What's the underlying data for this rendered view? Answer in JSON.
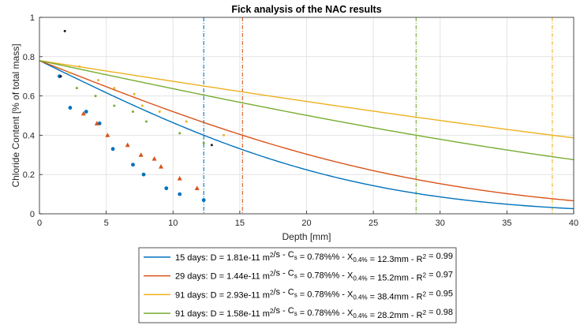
{
  "chart_data": {
    "type": "line",
    "title": "Fick analysis of the NAC results",
    "xlabel": "Depth [mm]",
    "ylabel": "Chloride Content [% of total mass]",
    "xlim": [
      0,
      40
    ],
    "ylim": [
      0,
      1
    ],
    "xticks": [
      0,
      5,
      10,
      15,
      20,
      25,
      30,
      35,
      40
    ],
    "yticks": [
      0,
      0.2,
      0.4,
      0.6,
      0.8,
      1
    ],
    "grid": true,
    "legend_position": "bottom-center",
    "series": [
      {
        "legend": {
          "pre": "15 days: D = 1.81e-11 m",
          "cs": " - C",
          "x": "% - X",
          "r": "mm - R",
          "d_exp": "2",
          "s_exp": "/s",
          "cs_sub": "s",
          "cs_val": " = 0.78%",
          "x_sub": "0.4%",
          "x_val": " = 12.3",
          "r_exp": "2",
          "r_val": " = 0.99"
        },
        "color": "#0072BD",
        "Cs": 0.78,
        "X04": 12.3,
        "vline_x": 12.3,
        "markers": {
          "shape": "circle",
          "x": [
            1.5,
            2.3,
            3.5,
            4.5,
            5.5,
            7,
            7.8,
            9.5,
            10.5,
            12.3
          ],
          "y": [
            0.7,
            0.54,
            0.52,
            0.46,
            0.33,
            0.25,
            0.2,
            0.13,
            0.1,
            0.07
          ]
        }
      },
      {
        "legend": {
          "pre": "29 days: D = 1.44e-11 m",
          "cs": " - C",
          "x": "% - X",
          "r": "mm - R",
          "d_exp": "2",
          "s_exp": "/s",
          "cs_sub": "s",
          "cs_val": " = 0.78%",
          "x_sub": "0.4%",
          "x_val": " = 15.2",
          "r_exp": "2",
          "r_val": " = 0.97"
        },
        "color": "#D95319",
        "Cs": 0.78,
        "X04": 15.2,
        "vline_x": 15.2,
        "markers": {
          "shape": "triangle",
          "x": [
            3.3,
            4.3,
            5.1,
            6.6,
            7.6,
            8.6,
            9.1,
            10.5,
            11.8
          ],
          "y": [
            0.51,
            0.46,
            0.4,
            0.35,
            0.3,
            0.28,
            0.24,
            0.18,
            0.13
          ]
        }
      },
      {
        "legend": {
          "pre": "91 days: D = 2.93e-11 m",
          "cs": " - C",
          "x": "% - X",
          "r": "mm - R",
          "d_exp": "2",
          "s_exp": "/s",
          "cs_sub": "s",
          "cs_val": " = 0.78%",
          "x_sub": "0.4%",
          "x_val": " = 38.4",
          "r_exp": "2",
          "r_val": " = 0.95"
        },
        "color": "#EDB120",
        "Cs": 0.78,
        "X04": 38.4,
        "vline_x": 38.4,
        "markers": {
          "shape": "point",
          "x": [
            2.2,
            3,
            4.4,
            5.6,
            7.1,
            7.7,
            9,
            11,
            13.8
          ],
          "y": [
            0.72,
            0.75,
            0.68,
            0.64,
            0.61,
            0.55,
            0.52,
            0.47,
            0.4
          ]
        }
      },
      {
        "legend": {
          "pre": "91 days: D = 1.58e-11 m",
          "cs": " - C",
          "x": "% - X",
          "r": "mm - R",
          "d_exp": "2",
          "s_exp": "/s",
          "cs_sub": "s",
          "cs_val": " = 0.78%",
          "x_sub": "0.4%",
          "x_val": " = 28.2",
          "r_exp": "2",
          "r_val": " = 0.98"
        },
        "color": "#77AC30",
        "Cs": 0.78,
        "X04": 28.2,
        "vline_x": 28.2,
        "markers": {
          "shape": "point",
          "x": [
            2.8,
            4.2,
            5.6,
            7,
            8,
            10.5,
            12.3
          ],
          "y": [
            0.64,
            0.6,
            0.55,
            0.52,
            0.47,
            0.41,
            0.36
          ]
        }
      }
    ],
    "extra_points": {
      "color": "#1a1a1a",
      "x": [
        1.6,
        1.9,
        12.9
      ],
      "y": [
        0.7,
        0.93,
        0.35
      ]
    }
  }
}
